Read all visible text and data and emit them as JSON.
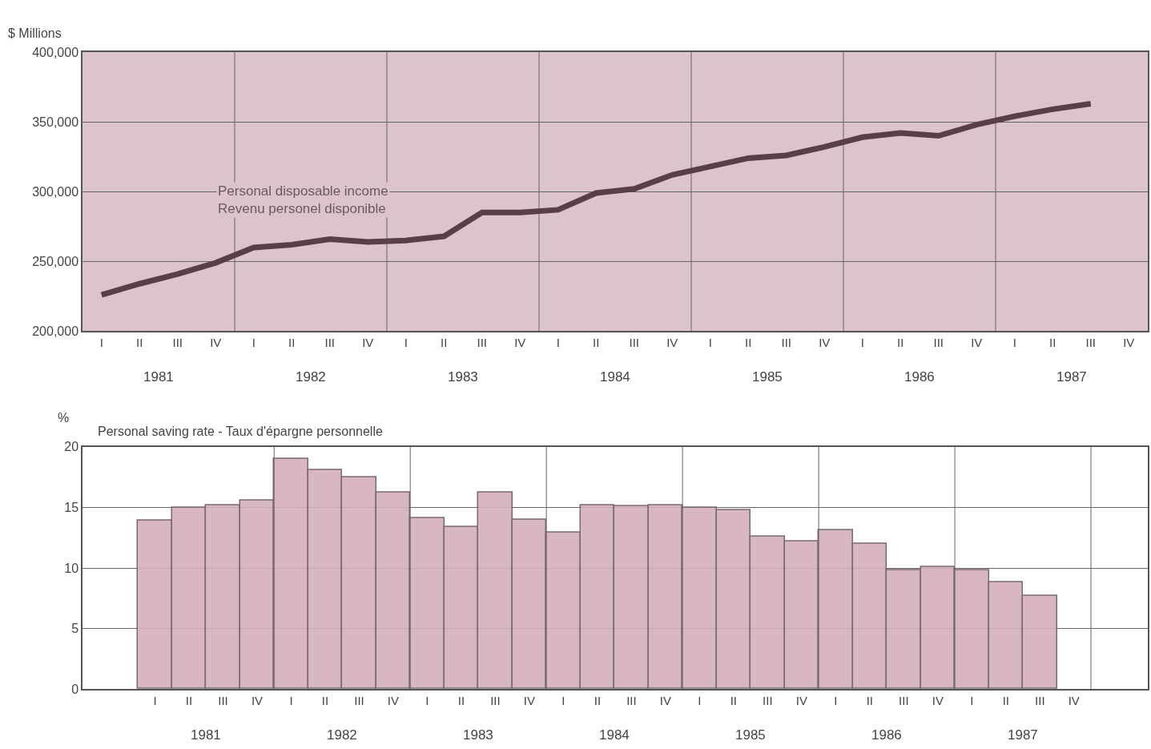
{
  "chart_data": [
    {
      "type": "line",
      "ylabel": "$ Millions",
      "categories": [
        "I",
        "II",
        "III",
        "IV",
        "I",
        "II",
        "III",
        "IV",
        "I",
        "II",
        "III",
        "IV",
        "I",
        "II",
        "III",
        "IV",
        "I",
        "II",
        "III",
        "IV",
        "I",
        "II",
        "III",
        "IV",
        "I",
        "II",
        "III",
        "IV"
      ],
      "series": [
        {
          "name": "Personal disposable income\nRevenu personel disponible",
          "color": "#5a3e48",
          "values": [
            226000,
            234000,
            241000,
            249000,
            260000,
            262000,
            266000,
            264000,
            265000,
            268000,
            285000,
            285000,
            287000,
            299000,
            302000,
            312000,
            318000,
            324000,
            326000,
            332000,
            339000,
            342000,
            340000,
            348000,
            354000,
            359000,
            363000,
            null
          ]
        }
      ],
      "ylim": [
        200000,
        400000
      ],
      "yticks": [
        {
          "value": 200000,
          "label": "200,000"
        },
        {
          "value": 250000,
          "label": "250,000"
        },
        {
          "value": 300000,
          "label": "300,000"
        },
        {
          "value": 350000,
          "label": "350,000"
        },
        {
          "value": 400000,
          "label": "400,000"
        }
      ],
      "annotations": [
        "1981",
        "1982",
        "1983",
        "1984",
        "1985",
        "1986",
        "1987"
      ],
      "grid": true,
      "legend": false,
      "marker": "none",
      "line_style": "solid"
    },
    {
      "type": "bar",
      "title": "Personal saving rate - Taux d'épargne personnelle",
      "ylabel": "%",
      "categories": [
        "I",
        "II",
        "III",
        "IV",
        "I",
        "II",
        "III",
        "IV",
        "I",
        "II",
        "III",
        "IV",
        "I",
        "II",
        "III",
        "IV",
        "I",
        "II",
        "III",
        "IV",
        "I",
        "II",
        "III",
        "IV",
        "I",
        "II",
        "III",
        "IV"
      ],
      "values": [
        13.9,
        15.0,
        15.2,
        15.6,
        19.0,
        18.1,
        17.5,
        16.2,
        14.1,
        13.4,
        16.2,
        14.0,
        12.9,
        15.2,
        15.1,
        15.2,
        15.0,
        14.8,
        12.6,
        12.2,
        13.1,
        12.0,
        9.8,
        10.1,
        9.8,
        8.8,
        7.7,
        null
      ],
      "color": "#d4b0bd",
      "ylim": [
        0,
        20
      ],
      "yticks": [
        0,
        5,
        10,
        15,
        20
      ],
      "annotations": [
        "1981",
        "1982",
        "1983",
        "1984",
        "1985",
        "1986",
        "1987"
      ],
      "grid": true,
      "legend": false
    }
  ]
}
